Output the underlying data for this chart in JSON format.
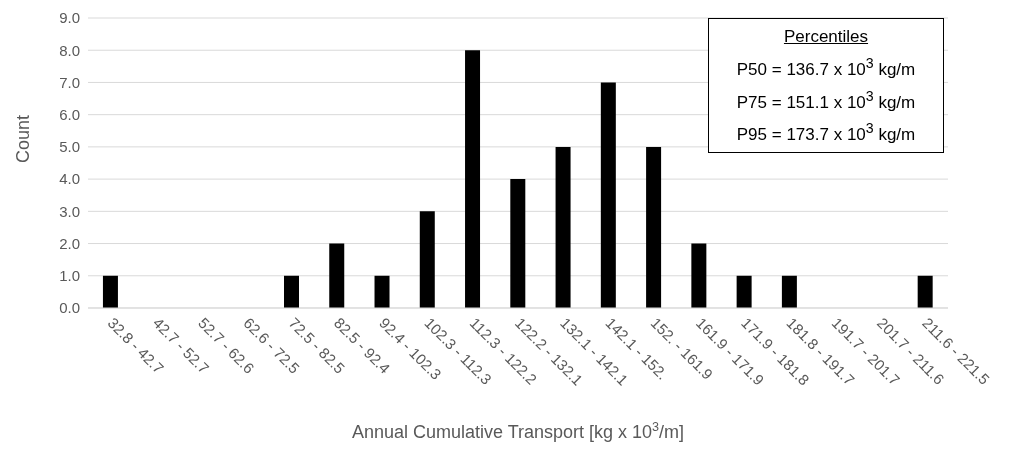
{
  "chart_data": {
    "type": "bar",
    "xlabel": "Annual Cumulative Transport [kg x 10$^{3}$/m]",
    "ylabel": "Count",
    "categories": [
      "32.8 - 42.7",
      "42.7 - 52.7",
      "52.7 - 62.6",
      "62.6 - 72.5",
      "72.5 - 82.5",
      "82.5 - 92.4",
      "92.4 - 102.3",
      "102.3 - 112.3",
      "112.3 - 122.2",
      "122.2 - 132.1",
      "132.1 - 142.1",
      "142.1 - 152.",
      "152. - 161.9",
      "161.9 - 171.9",
      "171.9 - 181.8",
      "181.8 - 191.7",
      "191.7 - 201.7",
      "201.7 - 211.6",
      "211.6 - 221.5"
    ],
    "values": [
      1,
      0,
      0,
      0,
      1,
      2,
      1,
      3,
      8,
      4,
      5,
      7,
      5,
      2,
      1,
      1,
      0,
      0,
      1
    ],
    "color": "#000000",
    "ylim": [
      0,
      9
    ],
    "yticks": [
      {
        "value": 0,
        "label": "0.0"
      },
      {
        "value": 1,
        "label": "1.0"
      },
      {
        "value": 2,
        "label": "2.0"
      },
      {
        "value": 3,
        "label": "3.0"
      },
      {
        "value": 4,
        "label": "4.0"
      },
      {
        "value": 5,
        "label": "5.0"
      },
      {
        "value": 6,
        "label": "6.0"
      },
      {
        "value": 7,
        "label": "7.0"
      },
      {
        "value": 8,
        "label": "8.0"
      },
      {
        "value": 9,
        "label": "9.0"
      }
    ],
    "grid": "y",
    "annotations": [
      "Percentiles",
      "P50 = 136.7 x 10$^{3}$ kg/m",
      "P75 = 151.1 x 10$^{3}$ kg/m",
      "P95 = 173.7 x 10$^{3}$ kg/m"
    ]
  }
}
